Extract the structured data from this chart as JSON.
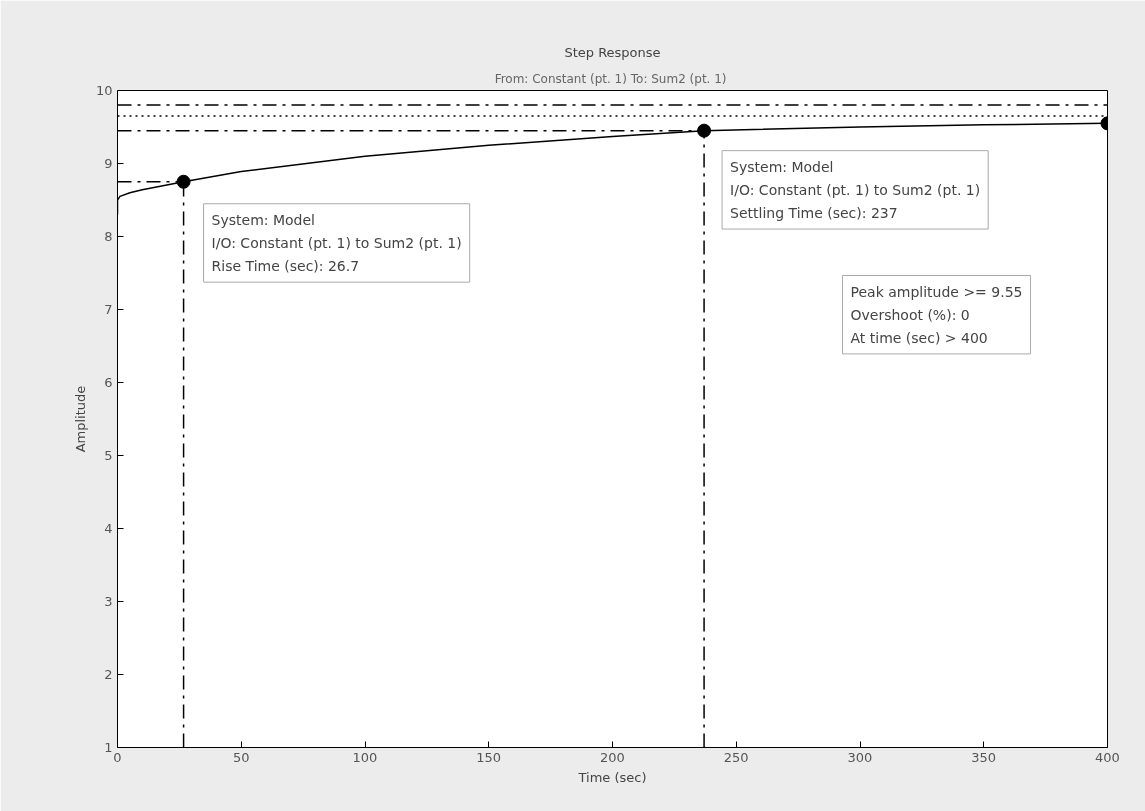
{
  "chart_data": {
    "type": "line",
    "title": "Step Response",
    "subtitle": "From: Constant (pt. 1)  To: Sum2 (pt. 1)",
    "xlabel": "Time (sec)",
    "ylabel": "Amplitude",
    "xlim": [
      0,
      400
    ],
    "xticks": [
      0,
      50,
      100,
      150,
      200,
      250,
      300,
      350,
      400
    ],
    "ylim": [
      1,
      10
    ],
    "yticks": [
      1,
      2,
      3,
      4,
      5,
      6,
      7,
      8,
      9,
      10
    ],
    "grid": false,
    "series": [
      {
        "color": "#000000",
        "line_style": "solid",
        "x": [
          0,
          0,
          1,
          5,
          10,
          26.7,
          50,
          100,
          150,
          200,
          237,
          300,
          350,
          400
        ],
        "values": [
          8.3,
          8.5,
          8.55,
          8.6,
          8.64,
          8.75,
          8.89,
          9.1,
          9.25,
          9.37,
          9.45,
          9.5,
          9.53,
          9.55
        ]
      },
      {
        "color": "#000000",
        "line_style": "dashdot",
        "x": [
          0,
          26.7
        ],
        "values": [
          8.75,
          8.75
        ]
      },
      {
        "type": "scatter",
        "color": "#000000",
        "marker": "circle",
        "x": [
          26.7,
          237,
          400
        ],
        "values": [
          8.75,
          9.45,
          9.55
        ]
      }
    ],
    "ref_lines": [
      {
        "axis": "y",
        "value": 9.8,
        "line_style": "dashdot",
        "color": "#000000"
      },
      {
        "axis": "y",
        "value": 9.65,
        "line_style": "dotted",
        "color": "#000000"
      },
      {
        "axis": "y",
        "value": 9.45,
        "line_style": "dashdot",
        "color": "#000000"
      },
      {
        "axis": "x",
        "value": 26.7,
        "line_style": "dashdot",
        "color": "#000000"
      },
      {
        "axis": "x",
        "value": 237,
        "line_style": "dashdot",
        "color": "#000000"
      }
    ],
    "annotations": [
      {
        "text": "System: Model\nI/O: Constant (pt. 1) to Sum2 (pt. 1)\nRise Time (sec): 26.7",
        "x": 26.7,
        "y": 8.75
      },
      {
        "text": "System: Model\nI/O: Constant (pt. 1) to Sum2 (pt. 1)\nSettling Time (sec): 237",
        "x": 237,
        "y": 9.45
      },
      "Peak amplitude >= 9.55\nOvershoot (%): 0\nAt time (sec) > 400"
    ]
  }
}
